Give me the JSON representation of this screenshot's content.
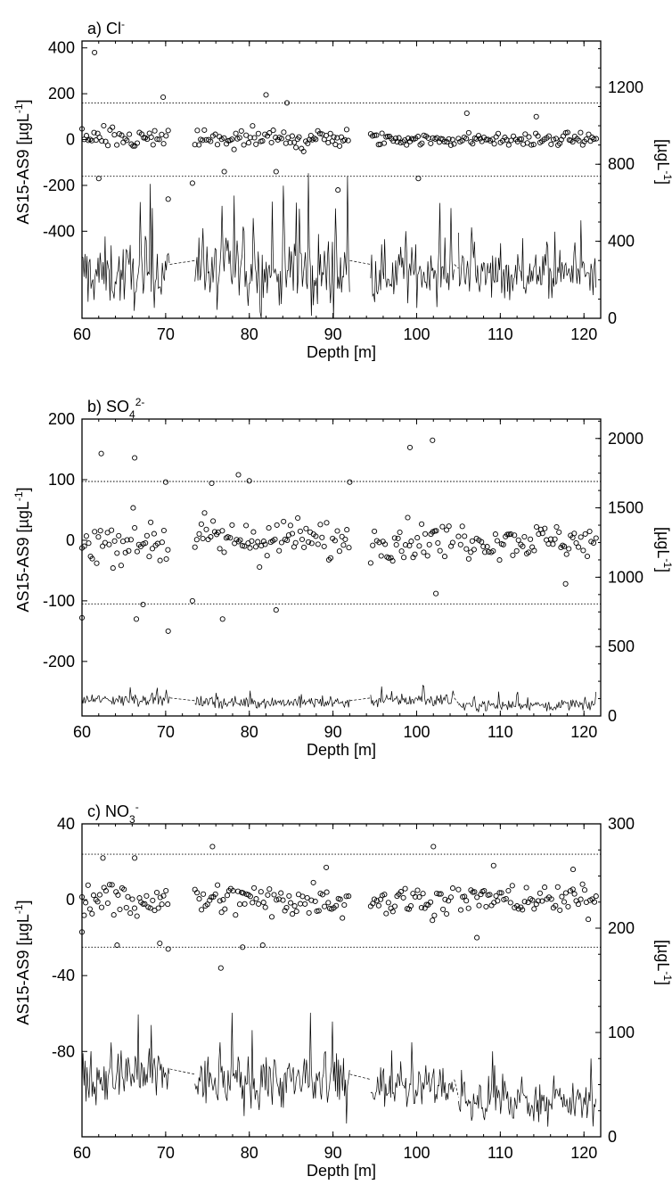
{
  "figure": {
    "x_axis": {
      "label": "Depth [m]",
      "range": [
        60,
        122
      ],
      "ticks": [
        60,
        70,
        80,
        90,
        100,
        110,
        120
      ]
    }
  },
  "chart_data": [
    {
      "type": "scatter",
      "panel_label": "a) Cl",
      "panel_label_sup": "-",
      "xlabel": "Depth [m]",
      "xlim": [
        60,
        122
      ],
      "left_axis": {
        "label": "AS15-AS9 [µgL",
        "label_sup": "-1",
        "label_end": "]",
        "ticks": [
          400,
          200,
          0,
          -200,
          -400
        ],
        "display_range": [
          -780,
          430
        ],
        "threshold_lines": [
          160,
          -160
        ]
      },
      "right_axis": {
        "label": "[µgL",
        "label_sup": "-1",
        "label_end": "]",
        "ticks": [
          0,
          400,
          800,
          1200
        ],
        "display_range": [
          0,
          1440
        ]
      },
      "series": [
        {
          "kind": "scatter-difference",
          "points_approx": [
            [
              61.5,
              380
            ],
            [
              62,
              -170
            ],
            [
              69.7,
              185
            ],
            [
              70.3,
              -260
            ],
            [
              73.2,
              -190
            ],
            [
              77,
              -140
            ],
            [
              82,
              195
            ],
            [
              83.2,
              -140
            ],
            [
              84.5,
              160
            ],
            [
              90.6,
              -220
            ],
            [
              100.2,
              -170
            ],
            [
              106,
              115
            ],
            [
              114.3,
              100
            ]
          ],
          "segments": [
            [
              60,
              70.5,
              45
            ],
            [
              73.5,
              92,
              48
            ],
            [
              94.5,
              104.5,
              25
            ],
            [
              105,
              121.5,
              25
            ]
          ]
        },
        {
          "kind": "concentration-line",
          "segments": [
            [
              60,
              70.5,
              280,
              170
            ],
            [
              73.5,
              92,
              300,
              200
            ],
            [
              94.5,
              104.5,
              280,
              140
            ],
            [
              105,
              121.5,
              260,
              120
            ]
          ]
        }
      ]
    },
    {
      "type": "scatter",
      "panel_label": "b) SO",
      "panel_label_sub": "4",
      "panel_label_sup": "2-",
      "xlabel": "Depth [m]",
      "xlim": [
        60,
        122
      ],
      "left_axis": {
        "label": "AS15-AS9 [µgL",
        "label_sup": "-1",
        "label_end": "]",
        "ticks": [
          200,
          100,
          0,
          -100,
          -200
        ],
        "display_range": [
          -290,
          200
        ],
        "threshold_lines": [
          97,
          -105
        ]
      },
      "right_axis": {
        "label": "[µgL",
        "label_sup": "-1",
        "label_end": "]",
        "ticks": [
          0,
          500,
          1000,
          1500,
          2000
        ],
        "display_range": [
          0,
          2140
        ]
      },
      "series": [
        {
          "kind": "scatter-difference",
          "points_approx": [
            [
              60,
              -128
            ],
            [
              62.3,
              143
            ],
            [
              66.3,
              136
            ],
            [
              66.5,
              -130
            ],
            [
              67.3,
              -106
            ],
            [
              70,
              96
            ],
            [
              70.3,
              -150
            ],
            [
              73.2,
              -100
            ],
            [
              75.5,
              94
            ],
            [
              76.8,
              -130
            ],
            [
              78.7,
              108
            ],
            [
              80,
              98
            ],
            [
              83.2,
              -115
            ],
            [
              92,
              96
            ],
            [
              99.2,
              153
            ],
            [
              101.9,
              165
            ],
            [
              102.3,
              -88
            ],
            [
              117.8,
              -72
            ]
          ],
          "segments": [
            [
              60,
              70.5,
              35
            ],
            [
              73.5,
              92,
              32
            ],
            [
              94.5,
              104.5,
              28
            ],
            [
              105,
              121.5,
              25
            ]
          ]
        },
        {
          "kind": "concentration-line",
          "segments": [
            [
              60,
              70.5,
              130,
              45
            ],
            [
              73.5,
              92,
              110,
              40
            ],
            [
              94.5,
              104.5,
              130,
              50
            ],
            [
              105,
              121.5,
              90,
              40
            ]
          ]
        }
      ]
    },
    {
      "type": "scatter",
      "panel_label": "c) NO",
      "panel_label_sub": "3",
      "panel_label_sup": "-",
      "xlabel": "Depth [m]",
      "xlim": [
        60,
        122
      ],
      "left_axis": {
        "label": "AS15-AS9 [µgL",
        "label_sup": "-1",
        "label_end": "]",
        "ticks": [
          40,
          0,
          -40,
          -80
        ],
        "display_range": [
          -125,
          40
        ],
        "threshold_lines": [
          24,
          -25
        ]
      },
      "right_axis": {
        "label": "[µgL",
        "label_sup": "-1",
        "label_end": "]",
        "ticks": [
          0,
          100,
          200,
          300
        ],
        "display_range": [
          0,
          300
        ]
      },
      "series": [
        {
          "kind": "scatter-difference",
          "points_approx": [
            [
              60,
              -17
            ],
            [
              62.5,
              22
            ],
            [
              64.2,
              -24
            ],
            [
              66.3,
              22
            ],
            [
              69.3,
              -23
            ],
            [
              70.3,
              -26
            ],
            [
              75.6,
              28
            ],
            [
              76.6,
              -36
            ],
            [
              79.2,
              -25
            ],
            [
              81.6,
              -24
            ],
            [
              89.2,
              17
            ],
            [
              102,
              28
            ],
            [
              107.2,
              -20
            ],
            [
              109.2,
              18
            ],
            [
              118.7,
              16
            ]
          ],
          "segments": [
            [
              60,
              70.5,
              9
            ],
            [
              73.5,
              92,
              8
            ],
            [
              94.5,
              104.5,
              8
            ],
            [
              105,
              121.5,
              7
            ]
          ]
        },
        {
          "kind": "concentration-line",
          "segments": [
            [
              60,
              70.5,
              65,
              25
            ],
            [
              73.5,
              92,
              60,
              25
            ],
            [
              94.5,
              104.5,
              55,
              20
            ],
            [
              105,
              121.5,
              38,
              18
            ]
          ]
        }
      ]
    }
  ]
}
